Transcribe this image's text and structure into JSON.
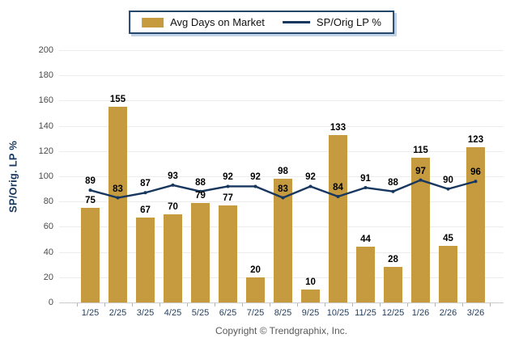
{
  "legend": {
    "items": [
      {
        "label": "Avg Days on Market",
        "type": "bar"
      },
      {
        "label": "SP/Orig LP %",
        "type": "line"
      }
    ]
  },
  "chart_data": {
    "type": "bar+line",
    "categories": [
      "1/25",
      "2/25",
      "3/25",
      "4/25",
      "5/25",
      "6/25",
      "7/25",
      "8/25",
      "9/25",
      "10/25",
      "11/25",
      "12/25",
      "1/26",
      "2/26",
      "3/26"
    ],
    "series": [
      {
        "name": "Avg Days on Market",
        "type": "bar",
        "color": "#C69B40",
        "values": [
          75,
          155,
          67,
          70,
          79,
          77,
          20,
          98,
          10,
          133,
          44,
          28,
          115,
          45,
          123
        ]
      },
      {
        "name": "SP/Orig LP %",
        "type": "line",
        "color": "#17375E",
        "values": [
          89,
          83,
          87,
          93,
          88,
          92,
          92,
          83,
          92,
          84,
          91,
          88,
          97,
          90,
          96
        ]
      }
    ],
    "title": "",
    "xlabel": "",
    "ylabel": "SP/Orig. LP %",
    "ylim": [
      0,
      200
    ],
    "ytick_step": 20,
    "grid": true,
    "legend_position": "top",
    "data_labels": true
  },
  "footer": {
    "copyright": "Copyright © Trendgraphix, Inc."
  }
}
